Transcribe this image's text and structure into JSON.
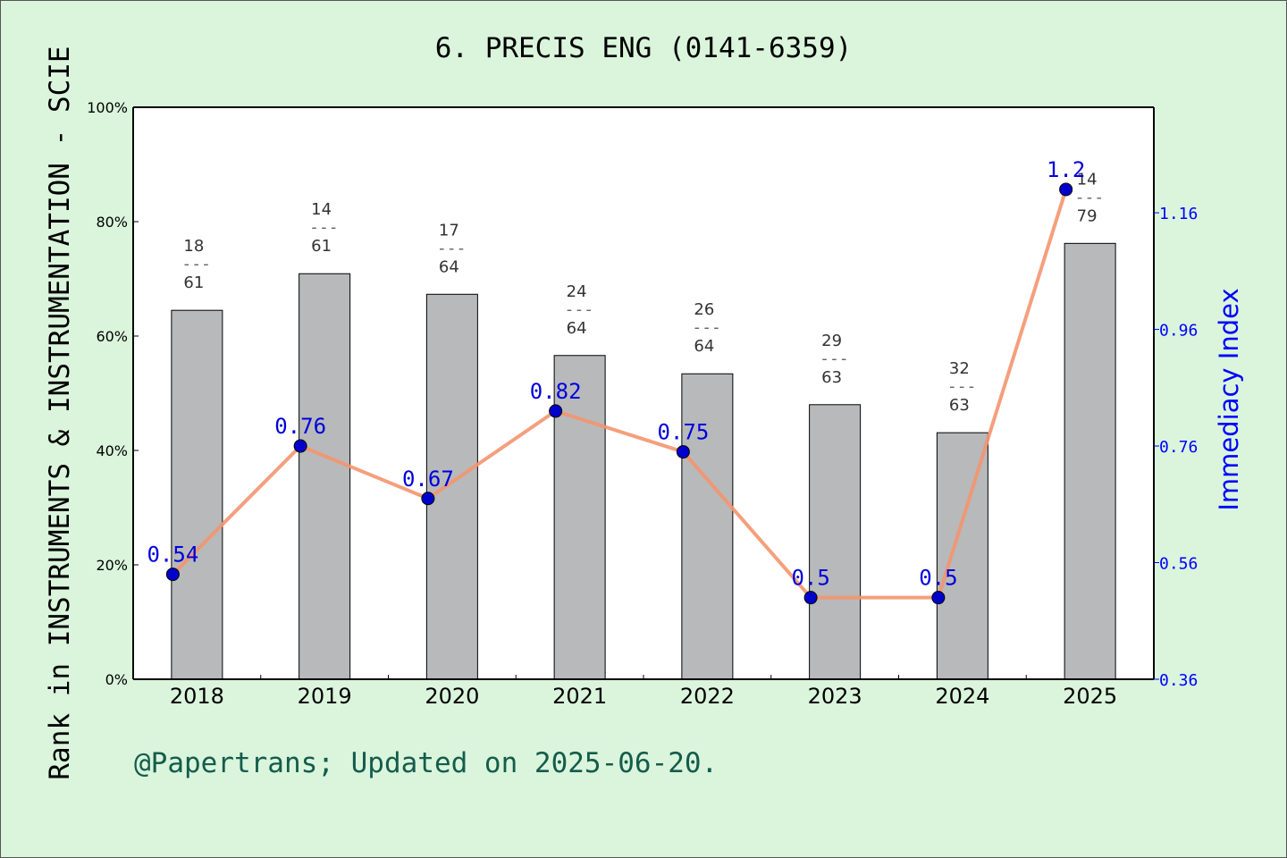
{
  "chart_data": {
    "type": "bar+line",
    "title": "6. PRECIS ENG (0141-6359)",
    "ylabel": "Rank in INSTRUMENTS & INSTRUMENTATION - SCIE",
    "y2label": "Immediacy Index",
    "categories": [
      "2018",
      "2019",
      "2020",
      "2021",
      "2022",
      "2023",
      "2024",
      "2025"
    ],
    "bar_values_percent": [
      64.5,
      70.9,
      67.3,
      56.6,
      53.4,
      48.0,
      43.1,
      76.2
    ],
    "rank_labels": [
      {
        "rank": "18",
        "total": "61"
      },
      {
        "rank": "14",
        "total": "61"
      },
      {
        "rank": "17",
        "total": "64"
      },
      {
        "rank": "24",
        "total": "64"
      },
      {
        "rank": "26",
        "total": "64"
      },
      {
        "rank": "29",
        "total": "63"
      },
      {
        "rank": "32",
        "total": "63"
      },
      {
        "rank": "14",
        "total": "79"
      }
    ],
    "line_values": [
      0.54,
      0.76,
      0.67,
      0.82,
      0.75,
      0.5,
      0.5,
      1.2
    ],
    "line_labels": [
      "0.54",
      "0.76",
      "0.67",
      "0.82",
      "0.75",
      "0.5",
      "0.5",
      "1.2"
    ],
    "ylim": [
      0,
      100
    ],
    "yticks": [
      "0%",
      "20%",
      "40%",
      "60%",
      "80%",
      "100%"
    ],
    "y2lim": [
      0.36,
      1.341
    ],
    "y2ticks": [
      "0.36",
      "0.56",
      "0.76",
      "0.96",
      "1.16"
    ],
    "colors": {
      "bar": "#b8b9ba",
      "line": "#f4956f",
      "point": "#0000cc",
      "y2": "#0000ff",
      "background": "#daf5dc"
    }
  },
  "footer": "@Papertrans; Updated on 2025-06-20."
}
